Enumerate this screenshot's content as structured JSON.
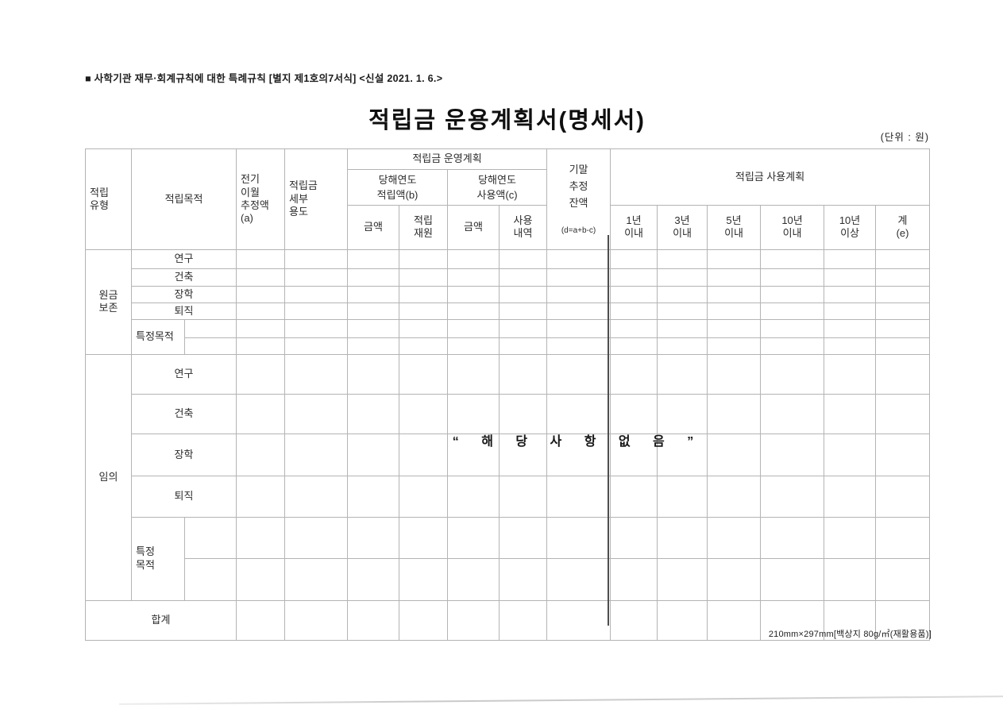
{
  "page": {
    "note": "■ 사학기관 재무·회계규칙에 대한 특례규칙 [별지 제1호의7서식] <신설 2021. 1. 6.>",
    "title": "적립금 운용계획서(명세서)",
    "unit_label": "(단위 : 원)",
    "empty_notice": "“ 해 당 사 항 없 음 ”",
    "footer": "210mm×297mm[백상지 80g/㎡(재활용품)]"
  },
  "table": {
    "headers": {
      "type": "적립\n유형",
      "purpose": "적립목적",
      "carryover": "전기\n이월\n추정액\n(a)",
      "detail_use": "적립금\n세부\n용도",
      "operation_plan": "적립금 운영계획",
      "year_accum": "당해연도\n적립액(b)",
      "year_use": "당해연도\n사용액(c)",
      "amount_accum": "금액",
      "accum_source": "적립\n재원",
      "amount_use": "금액",
      "use_detail": "사용\n내역",
      "ending_balance": "기말\n추정\n잔액",
      "ending_balance_formula": "(d=a+b-c)",
      "use_plan": "적립금 사용계획",
      "within_1y": "1년\n이내",
      "within_3y": "3년\n이내",
      "within_5y": "5년\n이내",
      "within_10y": "10년\n이내",
      "over_10y": "10년\n이상",
      "sum_e": "계\n(e)"
    },
    "sections": [
      {
        "label": "원금\n보존",
        "purposes": [
          "연구",
          "건축",
          "장학",
          "퇴직"
        ],
        "special": "특정목적"
      },
      {
        "label": "임의",
        "purposes": [
          "연구",
          "건축",
          "장학",
          "퇴직"
        ],
        "special": "특정\n목적"
      }
    ],
    "total_label": "합계"
  },
  "colors": {
    "grid": "#b4b4b4",
    "grid_dark": "#4e4e4e",
    "frame": "#878787",
    "ink": "#1c1c1c",
    "background": "#ffffff"
  }
}
